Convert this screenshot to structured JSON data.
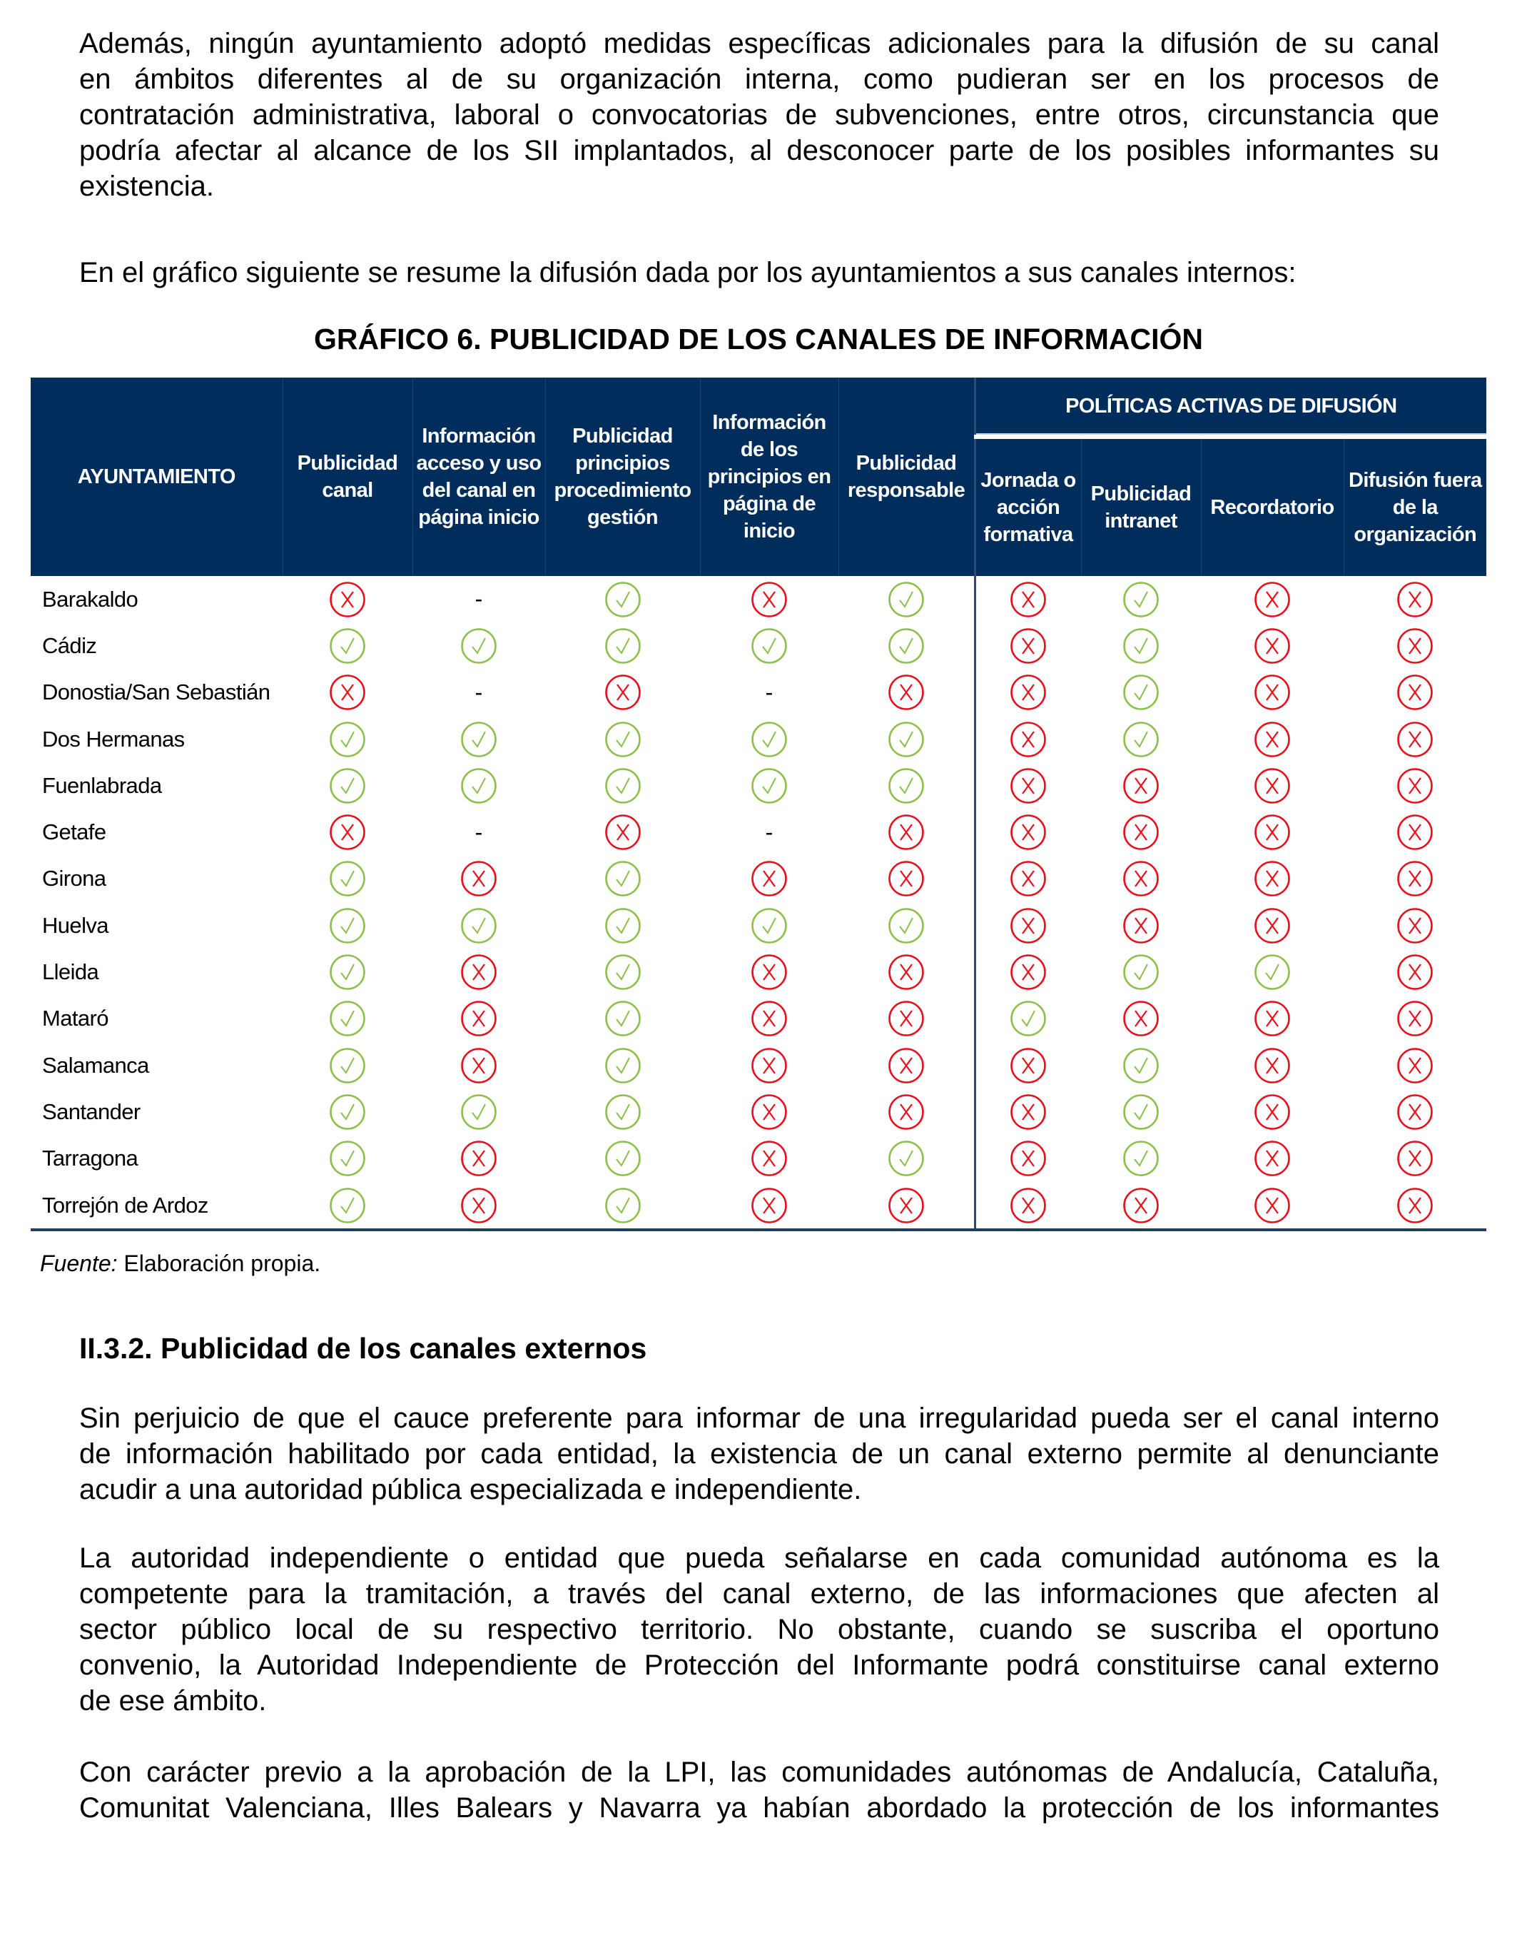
{
  "paragraph1": [
    "Además, ningún ayuntamiento adoptó medidas específicas adicionales para la difusión de su canal",
    "en ámbitos diferentes al de su organización interna, como pudieran ser en los procesos de",
    "contratación administrativa, laboral o convocatorias de subvenciones, entre otros, circunstancia que",
    "podría afectar al alcance de los SII implantados, al desconocer parte de los posibles informantes su",
    "existencia."
  ],
  "paragraph2": [
    "En el gráfico siguiente se resume la difusión dada por los ayuntamientos a sus canales internos:"
  ],
  "chart_title": "GRÁFICO 6.   PUBLICIDAD DE LOS CANALES DE INFORMACIÓN",
  "colors": {
    "header_bg": "#002d5c",
    "yes": "#8dc04a",
    "no": "#e8101c"
  },
  "table": {
    "headers": {
      "ayuntamiento": "AYUNTAMIENTO",
      "publicidad_canal": "Publicidad canal",
      "info_acceso": "Información acceso y uso del canal en página inicio",
      "publicidad_principios": "Publicidad principios procedimiento gestión",
      "info_principios": "Información de los principios en página de inicio",
      "publicidad_responsable": "Publicidad responsable",
      "group": "POLÍTICAS ACTIVAS DE DIFUSIÓN",
      "jornada": "Jornada o acción formativa",
      "intranet": "Publicidad intranet",
      "recordatorio": "Recordatorio",
      "difusion_fuera": "Difusión fuera de la organización"
    },
    "legend": {
      "Y": "check-icon",
      "N": "cross-icon",
      "-": "-"
    },
    "rows": [
      {
        "name": "Barakaldo",
        "values": [
          "N",
          "-",
          "Y",
          "N",
          "Y",
          "N",
          "Y",
          "N",
          "N"
        ]
      },
      {
        "name": "Cádiz",
        "values": [
          "Y",
          "Y",
          "Y",
          "Y",
          "Y",
          "N",
          "Y",
          "N",
          "N"
        ]
      },
      {
        "name": "Donostia/San Sebastián",
        "values": [
          "N",
          "-",
          "N",
          "-",
          "N",
          "N",
          "Y",
          "N",
          "N"
        ]
      },
      {
        "name": "Dos Hermanas",
        "values": [
          "Y",
          "Y",
          "Y",
          "Y",
          "Y",
          "N",
          "Y",
          "N",
          "N"
        ]
      },
      {
        "name": "Fuenlabrada",
        "values": [
          "Y",
          "Y",
          "Y",
          "Y",
          "Y",
          "N",
          "N",
          "N",
          "N"
        ]
      },
      {
        "name": "Getafe",
        "values": [
          "N",
          "-",
          "N",
          "-",
          "N",
          "N",
          "N",
          "N",
          "N"
        ]
      },
      {
        "name": "Girona",
        "values": [
          "Y",
          "N",
          "Y",
          "N",
          "N",
          "N",
          "N",
          "N",
          "N"
        ]
      },
      {
        "name": "Huelva",
        "values": [
          "Y",
          "Y",
          "Y",
          "Y",
          "Y",
          "N",
          "N",
          "N",
          "N"
        ]
      },
      {
        "name": "Lleida",
        "values": [
          "Y",
          "N",
          "Y",
          "N",
          "N",
          "N",
          "Y",
          "Y",
          "N"
        ]
      },
      {
        "name": "Mataró",
        "values": [
          "Y",
          "N",
          "Y",
          "N",
          "N",
          "Y",
          "N",
          "N",
          "N"
        ]
      },
      {
        "name": "Salamanca",
        "values": [
          "Y",
          "N",
          "Y",
          "N",
          "N",
          "N",
          "Y",
          "N",
          "N"
        ]
      },
      {
        "name": "Santander",
        "values": [
          "Y",
          "Y",
          "Y",
          "N",
          "N",
          "N",
          "Y",
          "N",
          "N"
        ]
      },
      {
        "name": "Tarragona",
        "values": [
          "Y",
          "N",
          "Y",
          "N",
          "Y",
          "N",
          "Y",
          "N",
          "N"
        ]
      },
      {
        "name": "Torrejón de Ardoz",
        "values": [
          "Y",
          "N",
          "Y",
          "N",
          "N",
          "N",
          "N",
          "N",
          "N"
        ]
      }
    ]
  },
  "source": {
    "label": "Fuente:",
    "text": " Elaboración propia."
  },
  "section_heading": "II.3.2. Publicidad de los canales externos",
  "paragraph3": [
    "Sin perjuicio de que el cauce preferente para informar de una irregularidad pueda ser el canal interno",
    "de información habilitado por cada entidad, la existencia de un canal externo permite al denunciante",
    "acudir a una autoridad pública especializada e independiente."
  ],
  "paragraph4": [
    "La autoridad independiente o entidad que pueda señalarse en cada comunidad autónoma es la",
    "competente para la tramitación, a través del canal externo, de las informaciones que afecten al",
    "sector público local de su respectivo territorio. No obstante, cuando se suscriba el oportuno",
    "convenio, la Autoridad Independiente de Protección del Informante podrá constituirse canal externo",
    "de ese ámbito."
  ],
  "paragraph5": [
    "Con carácter previo a la aprobación de la LPI, las comunidades autónomas de Andalucía, Cataluña,",
    "Comunitat Valenciana, Illes Balears y Navarra ya habían abordado la protección de los informantes"
  ]
}
